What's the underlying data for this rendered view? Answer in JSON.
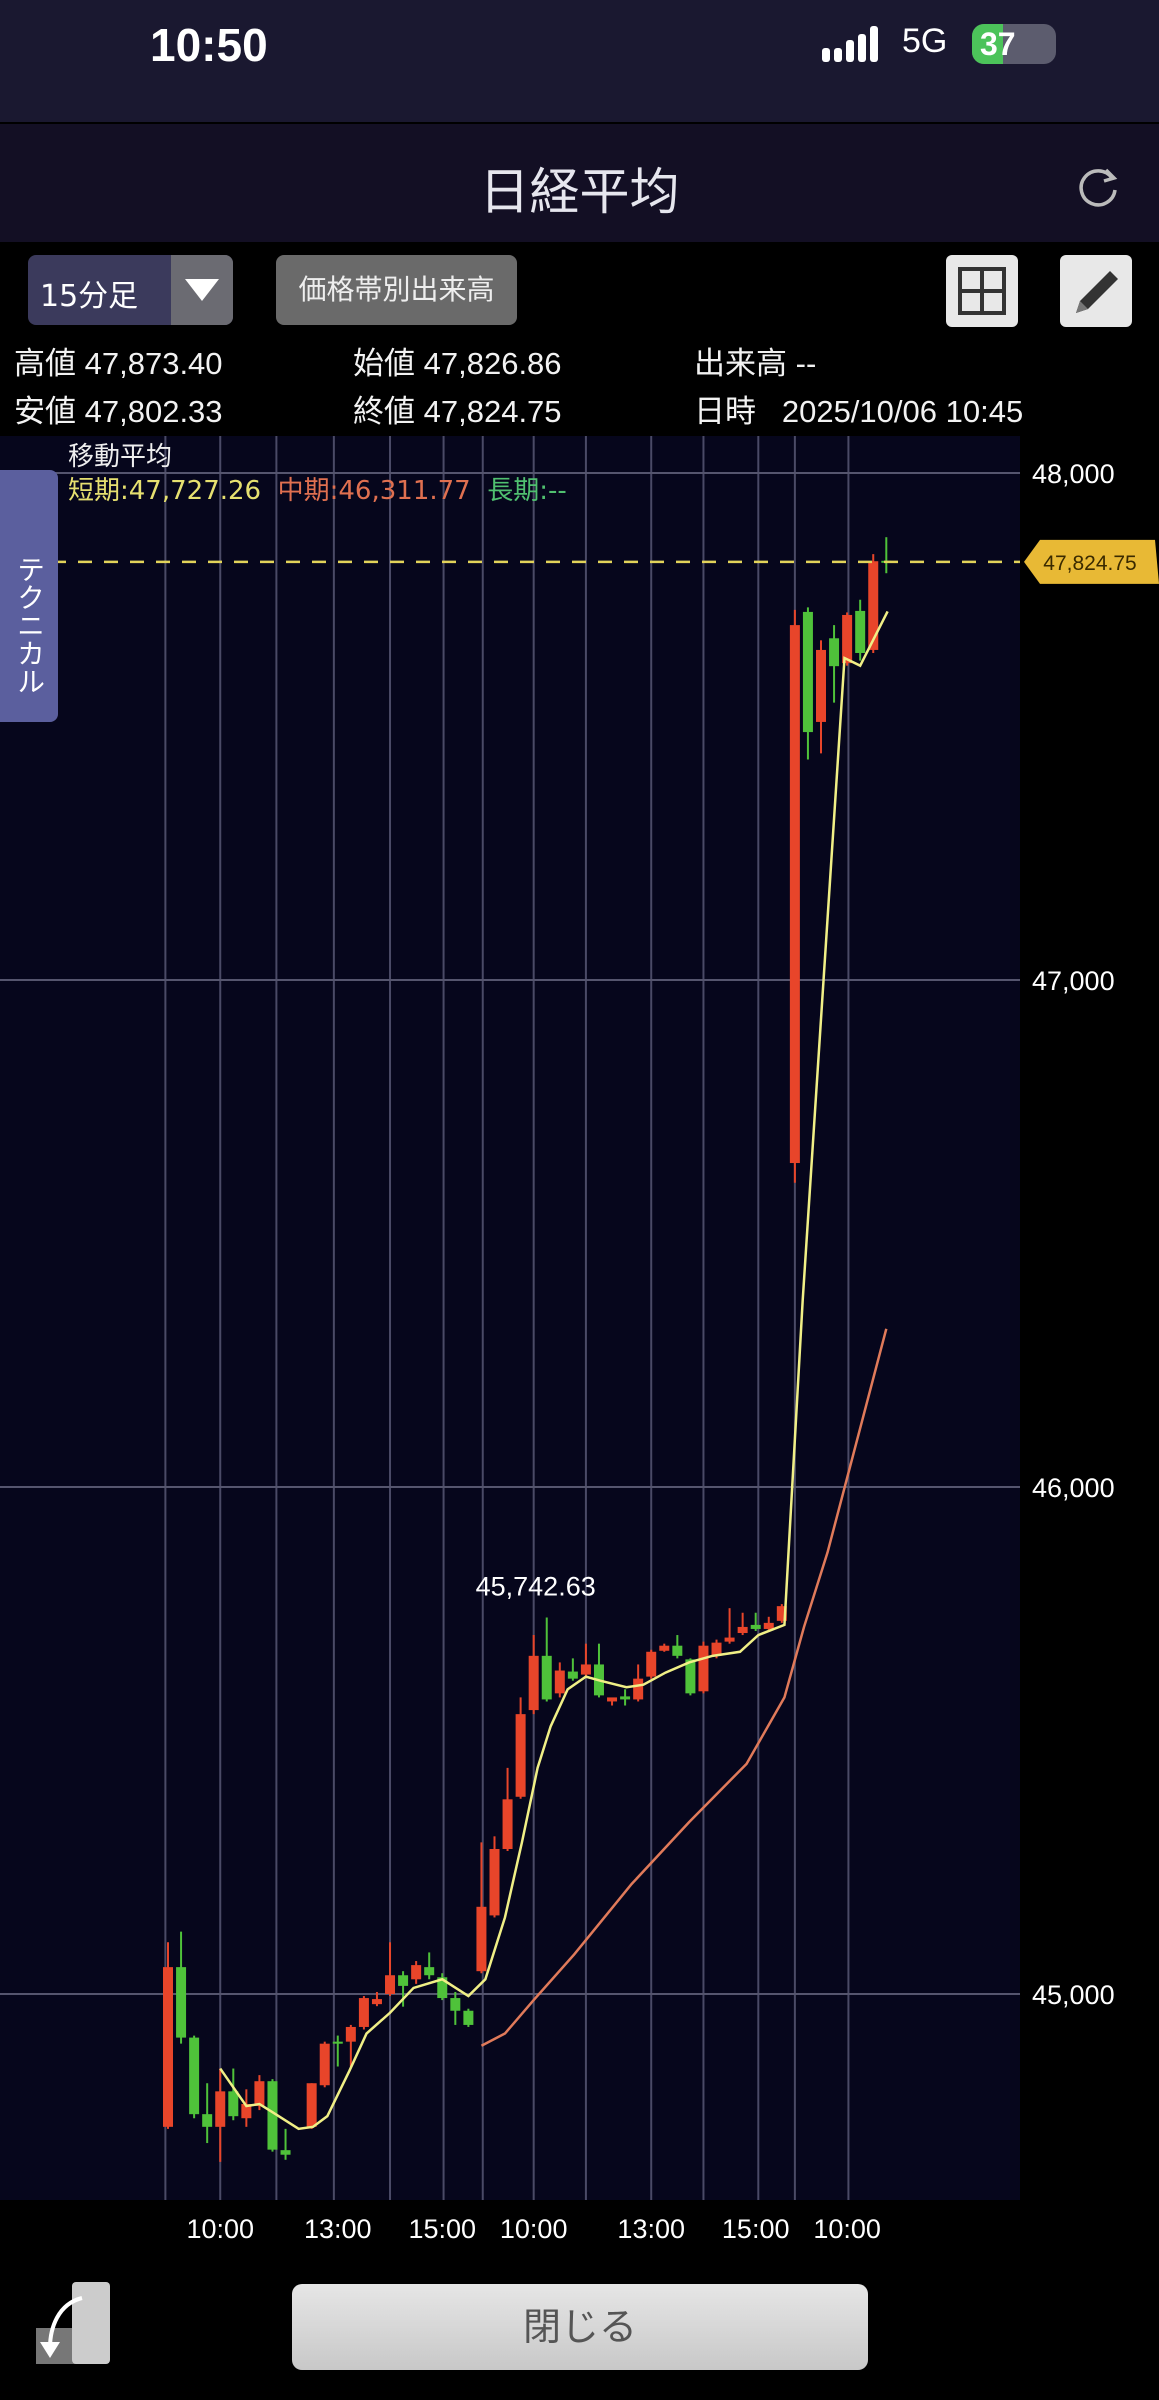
{
  "status_bar": {
    "time": "10:50",
    "network": "5G",
    "battery": "37",
    "battery_level": 0.37,
    "icons": [
      "signal-icon",
      "battery-charging-icon"
    ]
  },
  "header": {
    "title": "日経平均",
    "refresh_icon": "refresh-icon"
  },
  "toolbar": {
    "interval": "15分足",
    "volume_profile": "価格帯別出来高",
    "grid_icon": "grid-icon",
    "pencil_icon": "pencil-icon"
  },
  "info": {
    "high_label": "高値",
    "high": "47,873.40",
    "open_label": "始値",
    "open": "47,826.86",
    "volume_label": "出来高",
    "volume": "--",
    "low_label": "安値",
    "low": "47,802.33",
    "close_label": "終値",
    "close": "47,824.75",
    "datetime_label": "日時",
    "datetime": "2025/10/06 10:45"
  },
  "technical_tab": "テクニカル",
  "legend": {
    "title": "移動平均",
    "short": "短期:47,727.26",
    "mid": "中期:46,311.77",
    "long": "長期:--"
  },
  "footer": {
    "close": "閉じる",
    "exit_icon": "exit-icon"
  },
  "colors": {
    "up": "#e8452a",
    "down": "#4fc23a",
    "short_ma": "#f0ef86",
    "mid_ma": "#e07a5a",
    "long_ma": "#50c070",
    "price_line": "#e2d35a",
    "price_tag": "#e8b935"
  },
  "chart_data": {
    "type": "candlestick",
    "ylim": [
      44620,
      48230
    ],
    "y_ticks": [
      {
        "v": 48000,
        "label": "48,000"
      },
      {
        "v": 47000,
        "label": "47,000"
      },
      {
        "v": 46000,
        "label": "46,000"
      },
      {
        "v": 45000,
        "label": "45,000"
      }
    ],
    "x_ticks": [
      {
        "i": 4,
        "label": "10:00"
      },
      {
        "i": 13,
        "label": "13:00"
      },
      {
        "i": 21,
        "label": "15:00"
      },
      {
        "i": 28,
        "label": "10:00"
      },
      {
        "i": 37,
        "label": "13:00"
      },
      {
        "i": 45,
        "label": "15:00"
      },
      {
        "i": 52,
        "label": "10:00"
      }
    ],
    "vgrid_i": [
      -0.2,
      4,
      8.3,
      12.7,
      17,
      21.1,
      24.1,
      28,
      32,
      37,
      41,
      45.2,
      48,
      52.1
    ],
    "current_price": {
      "value": 47824.75,
      "label": "47,824.75"
    },
    "annotation": {
      "value": 45742.63,
      "label": "45,742.63",
      "i": 28
    },
    "candles": [
      [
        44738,
        45102,
        44734,
        45053
      ],
      [
        45053,
        45123,
        44902,
        44914
      ],
      [
        44914,
        44918,
        44755,
        44763
      ],
      [
        44763,
        44824,
        44706,
        44738
      ],
      [
        44738,
        44853,
        44669,
        44808
      ],
      [
        44808,
        44853,
        44751,
        44759
      ],
      [
        44755,
        44812,
        44738,
        44783
      ],
      [
        44779,
        44840,
        44771,
        44828
      ],
      [
        44828,
        44832,
        44689,
        44693
      ],
      [
        44692,
        44734,
        44673,
        44683
      ],
      null,
      [
        44738,
        44824,
        44734,
        44824
      ],
      [
        44820,
        44906,
        44816,
        44902
      ],
      [
        44902,
        44918,
        44857,
        44906
      ],
      [
        44906,
        44939,
        44857,
        44935
      ],
      [
        44935,
        44996,
        44930,
        44992
      ],
      [
        44980,
        45004,
        44976,
        44990
      ],
      [
        45000,
        45102,
        44996,
        45037
      ],
      [
        45037,
        45045,
        44975,
        45016
      ],
      [
        45029,
        45065,
        45020,
        45057
      ],
      [
        45053,
        45082,
        45029,
        45037
      ],
      [
        45033,
        45041,
        44988,
        44992
      ],
      [
        44992,
        45004,
        44939,
        44967
      ],
      [
        44967,
        44971,
        44935,
        44939
      ],
      [
        45045,
        45299,
        45041,
        45172
      ],
      [
        45155,
        45311,
        45151,
        45286
      ],
      [
        45286,
        45446,
        45282,
        45384
      ],
      [
        45389,
        45585,
        45385,
        45552
      ],
      [
        45560,
        45708,
        45552,
        45667
      ],
      [
        45667,
        45742.63,
        45577,
        45581
      ],
      [
        45593,
        45654,
        45585,
        45638
      ],
      [
        45636,
        45662,
        45618,
        45622
      ],
      [
        45630,
        45691,
        45626,
        45650
      ],
      [
        45650,
        45691,
        45585,
        45589
      ],
      [
        45577,
        45581,
        45569,
        45585
      ],
      [
        45587,
        45601,
        45569,
        45581
      ],
      [
        45581,
        45650,
        45577,
        45622
      ],
      [
        45626,
        45679,
        45622,
        45675
      ],
      [
        45677,
        45691,
        45675,
        45687
      ],
      [
        45687,
        45708,
        45662,
        45667
      ],
      [
        45660,
        45662,
        45589,
        45593
      ],
      [
        45597,
        45695,
        45593,
        45687
      ],
      [
        45667,
        45699,
        45662,
        45693
      ],
      [
        45695,
        45761,
        45691,
        45703
      ],
      [
        45712,
        45752,
        45708,
        45724
      ],
      [
        45728,
        45752,
        45716,
        45720
      ],
      [
        45720,
        45744,
        45716,
        45732
      ],
      [
        45736,
        45769,
        45732,
        45765
      ],
      [
        46639,
        47730,
        46600,
        47700
      ],
      [
        47726,
        47735,
        47435,
        47489
      ],
      [
        47509,
        47670,
        47447,
        47651
      ],
      [
        47674,
        47700,
        47547,
        47619
      ],
      [
        47625,
        47725,
        47620,
        47720
      ],
      [
        47728,
        47750,
        47630,
        47645
      ],
      [
        47651,
        47840,
        47645,
        47826
      ],
      [
        47826.86,
        47873.4,
        47802.33,
        47824.75
      ]
    ],
    "short_ma": [
      [
        4,
        44853
      ],
      [
        6,
        44779
      ],
      [
        7,
        44783
      ],
      [
        8,
        44767
      ],
      [
        10,
        44734
      ],
      [
        11.1,
        44738
      ],
      [
        12.2,
        44759
      ],
      [
        13.9,
        44849
      ],
      [
        15.2,
        44922
      ],
      [
        17,
        44963
      ],
      [
        18.8,
        45012
      ],
      [
        21,
        45029
      ],
      [
        23,
        44996
      ],
      [
        24.3,
        45029
      ],
      [
        25.8,
        45151
      ],
      [
        27.1,
        45299
      ],
      [
        28.3,
        45446
      ],
      [
        29.3,
        45528
      ],
      [
        30.6,
        45601
      ],
      [
        32,
        45626
      ],
      [
        33.1,
        45618
      ],
      [
        35.1,
        45605
      ],
      [
        36.4,
        45610
      ],
      [
        38.1,
        45634
      ],
      [
        39.9,
        45654
      ],
      [
        41.7,
        45667
      ],
      [
        43.8,
        45675
      ],
      [
        45.2,
        45708
      ],
      [
        47.2,
        45728
      ],
      [
        48.6,
        46369
      ],
      [
        51.8,
        47635
      ],
      [
        53,
        47620
      ],
      [
        55.1,
        47727
      ]
    ],
    "mid_ma": [
      [
        24,
        44898
      ],
      [
        25.8,
        44922
      ],
      [
        28,
        44988
      ],
      [
        31.1,
        45078
      ],
      [
        35.5,
        45217
      ],
      [
        39.9,
        45339
      ],
      [
        44.3,
        45454
      ],
      [
        47.2,
        45585
      ],
      [
        48.7,
        45724
      ],
      [
        50.5,
        45871
      ],
      [
        55,
        46312
      ]
    ]
  }
}
